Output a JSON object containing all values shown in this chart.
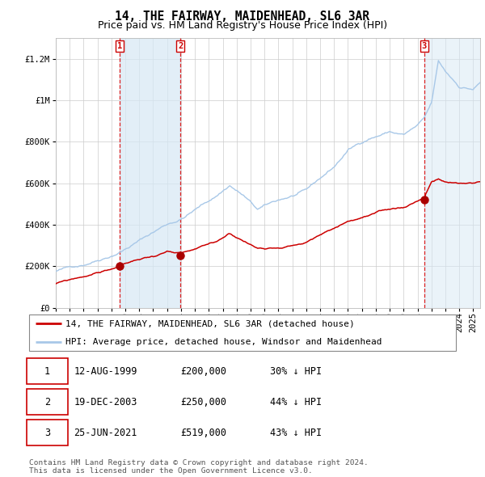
{
  "title": "14, THE FAIRWAY, MAIDENHEAD, SL6 3AR",
  "subtitle": "Price paid vs. HM Land Registry's House Price Index (HPI)",
  "ylabel_ticks": [
    "£0",
    "£200K",
    "£400K",
    "£600K",
    "£800K",
    "£1M",
    "£1.2M"
  ],
  "ytick_vals": [
    0,
    200000,
    400000,
    600000,
    800000,
    1000000,
    1200000
  ],
  "ylim": [
    0,
    1300000
  ],
  "xlim_start": 1995.0,
  "xlim_end": 2025.5,
  "hpi_color": "#a8c8e8",
  "price_color": "#cc0000",
  "bg_color": "#ffffff",
  "grid_color": "#cccccc",
  "sale_points": [
    {
      "year": 1999.614,
      "price": 200000,
      "label": "1"
    },
    {
      "year": 2003.964,
      "price": 250000,
      "label": "2"
    },
    {
      "year": 2021.478,
      "price": 519000,
      "label": "3"
    }
  ],
  "vline_color": "#dd2222",
  "legend_entries": [
    "14, THE FAIRWAY, MAIDENHEAD, SL6 3AR (detached house)",
    "HPI: Average price, detached house, Windsor and Maidenhead"
  ],
  "table_rows": [
    [
      "1",
      "12-AUG-1999",
      "£200,000",
      "30% ↓ HPI"
    ],
    [
      "2",
      "19-DEC-2003",
      "£250,000",
      "44% ↓ HPI"
    ],
    [
      "3",
      "25-JUN-2021",
      "£519,000",
      "43% ↓ HPI"
    ]
  ],
  "footnote": "Contains HM Land Registry data © Crown copyright and database right 2024.\nThis data is licensed under the Open Government Licence v3.0.",
  "title_fontsize": 10.5,
  "subtitle_fontsize": 9,
  "tick_fontsize": 7.5,
  "legend_fontsize": 8,
  "table_fontsize": 8.5
}
